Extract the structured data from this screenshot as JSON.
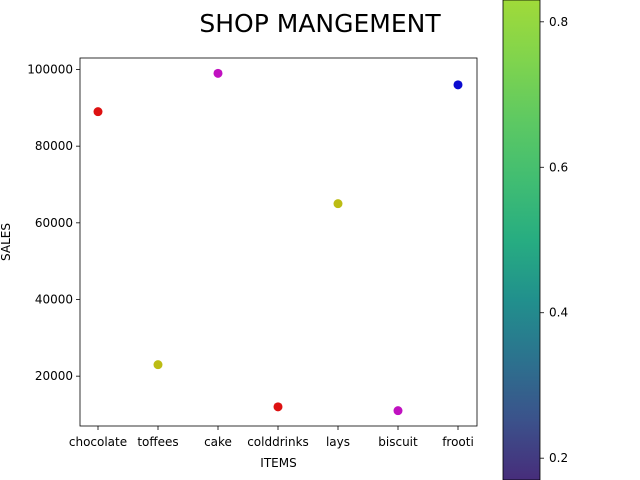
{
  "chart_data": {
    "type": "scatter",
    "title": "SHOP MANGEMENT",
    "xlabel": "ITEMS",
    "ylabel": "SALES",
    "categories": [
      "chocolate",
      "toffees",
      "cake",
      "colddrinks",
      "lays",
      "biscuit",
      "frooti"
    ],
    "values": [
      89000,
      23000,
      99000,
      12000,
      65000,
      11000,
      96000
    ],
    "point_colors": [
      "#dd1111",
      "#bcbc14",
      "#c011c0",
      "#dd1111",
      "#bcbc14",
      "#c011c0",
      "#0b0bd0"
    ],
    "ylim": [
      7000,
      103000
    ],
    "yticks": [
      20000,
      40000,
      60000,
      80000,
      100000
    ],
    "ytick_labels": [
      "20000",
      "40000",
      "60000",
      "80000",
      "100000"
    ],
    "grid": false,
    "colorbar": {
      "colormap": "viridis",
      "range": [
        0.17,
        0.83
      ],
      "ticks": [
        0.2,
        0.4,
        0.6,
        0.8
      ],
      "tick_labels": [
        "0.2",
        "0.4",
        "0.6",
        "0.8"
      ]
    }
  }
}
